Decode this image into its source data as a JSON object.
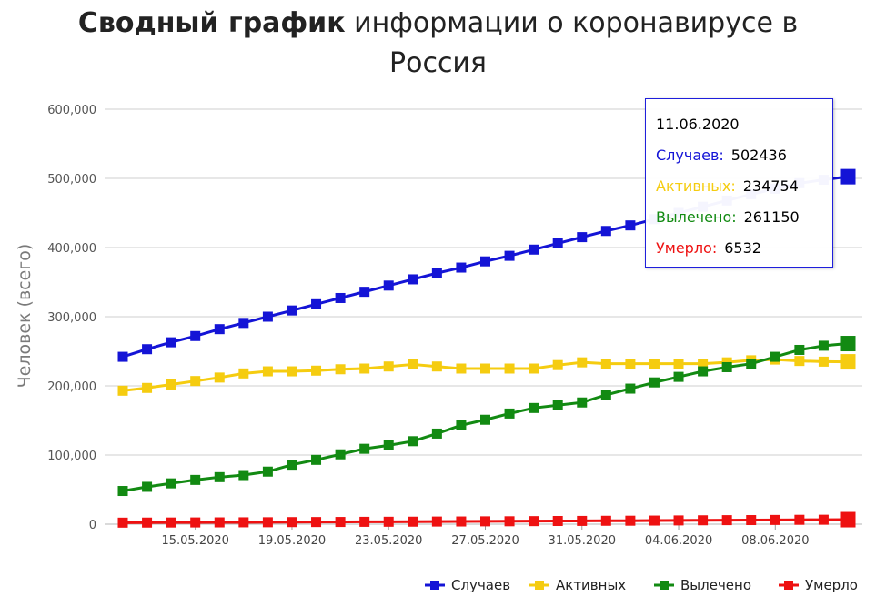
{
  "title": {
    "bold": "Сводный график",
    "rest_line1": " информации о коронавирусе в",
    "line2": "Россия"
  },
  "chart_data": {
    "type": "line",
    "title": "Сводный график информации о коронавирусе в Россия",
    "xlabel": "",
    "ylabel": "Человек (всего)",
    "ylim": [
      0,
      600000
    ],
    "y_ticks": [
      0,
      100000,
      200000,
      300000,
      400000,
      500000,
      600000
    ],
    "y_tick_labels": [
      "0",
      "100,000",
      "200,000",
      "300,000",
      "400,000",
      "500,000",
      "600,000"
    ],
    "x_tick_labels": [
      "15.05.2020",
      "19.05.2020",
      "23.05.2020",
      "27.05.2020",
      "31.05.2020",
      "04.06.2020",
      "08.06.2020"
    ],
    "x_tick_dates": [
      "2020-05-15",
      "2020-05-19",
      "2020-05-23",
      "2020-05-27",
      "2020-05-31",
      "2020-06-04",
      "2020-06-08"
    ],
    "x": [
      "2020-05-12",
      "2020-05-13",
      "2020-05-14",
      "2020-05-15",
      "2020-05-16",
      "2020-05-17",
      "2020-05-18",
      "2020-05-19",
      "2020-05-20",
      "2020-05-21",
      "2020-05-22",
      "2020-05-23",
      "2020-05-24",
      "2020-05-25",
      "2020-05-26",
      "2020-05-27",
      "2020-05-28",
      "2020-05-29",
      "2020-05-30",
      "2020-05-31",
      "2020-06-01",
      "2020-06-02",
      "2020-06-03",
      "2020-06-04",
      "2020-06-05",
      "2020-06-06",
      "2020-06-07",
      "2020-06-08",
      "2020-06-09",
      "2020-06-10",
      "2020-06-11"
    ],
    "grid": true,
    "legend_position": "bottom-right",
    "series": [
      {
        "name": "Случаев",
        "color": "#1414d6",
        "values": [
          242000,
          253000,
          263000,
          272000,
          282000,
          291000,
          300000,
          309000,
          318000,
          327000,
          336000,
          345000,
          354000,
          363000,
          371000,
          380000,
          388000,
          397000,
          406000,
          415000,
          424000,
          432000,
          441000,
          450000,
          459000,
          468000,
          477000,
          485000,
          493000,
          498000,
          502436
        ]
      },
      {
        "name": "Активных",
        "color": "#f5cc10",
        "values": [
          193000,
          197000,
          202000,
          207000,
          212000,
          218000,
          221000,
          221000,
          222000,
          224000,
          225000,
          228000,
          231000,
          228000,
          225000,
          225000,
          225000,
          225000,
          230000,
          234000,
          232000,
          232000,
          232000,
          232000,
          232000,
          234000,
          237000,
          238000,
          236000,
          235000,
          234754
        ]
      },
      {
        "name": "Вылечено",
        "color": "#128a12",
        "values": [
          48000,
          54000,
          59000,
          64000,
          68000,
          71000,
          76000,
          86000,
          93000,
          101000,
          109000,
          114000,
          120000,
          131000,
          143000,
          151000,
          160000,
          168000,
          172000,
          176000,
          187000,
          196000,
          205000,
          213000,
          221000,
          227000,
          232000,
          242000,
          252000,
          258000,
          261150
        ]
      },
      {
        "name": "Умерло",
        "color": "#ee1111",
        "values": [
          2200,
          2300,
          2400,
          2500,
          2600,
          2700,
          2800,
          3000,
          3100,
          3200,
          3400,
          3500,
          3600,
          3800,
          3900,
          4100,
          4200,
          4400,
          4600,
          4700,
          4900,
          5000,
          5200,
          5400,
          5600,
          5800,
          5900,
          6100,
          6300,
          6400,
          6532
        ]
      }
    ]
  },
  "tooltip": {
    "date": "11.06.2020",
    "rows": [
      {
        "label": "Случаев:",
        "value": "502436",
        "color": "#1414d6"
      },
      {
        "label": "Активных:",
        "value": "234754",
        "color": "#f5cc10"
      },
      {
        "label": "Вылечено:",
        "value": "261150",
        "color": "#128a12"
      },
      {
        "label": "Умерло:",
        "value": "6532",
        "color": "#ee1111"
      }
    ]
  }
}
